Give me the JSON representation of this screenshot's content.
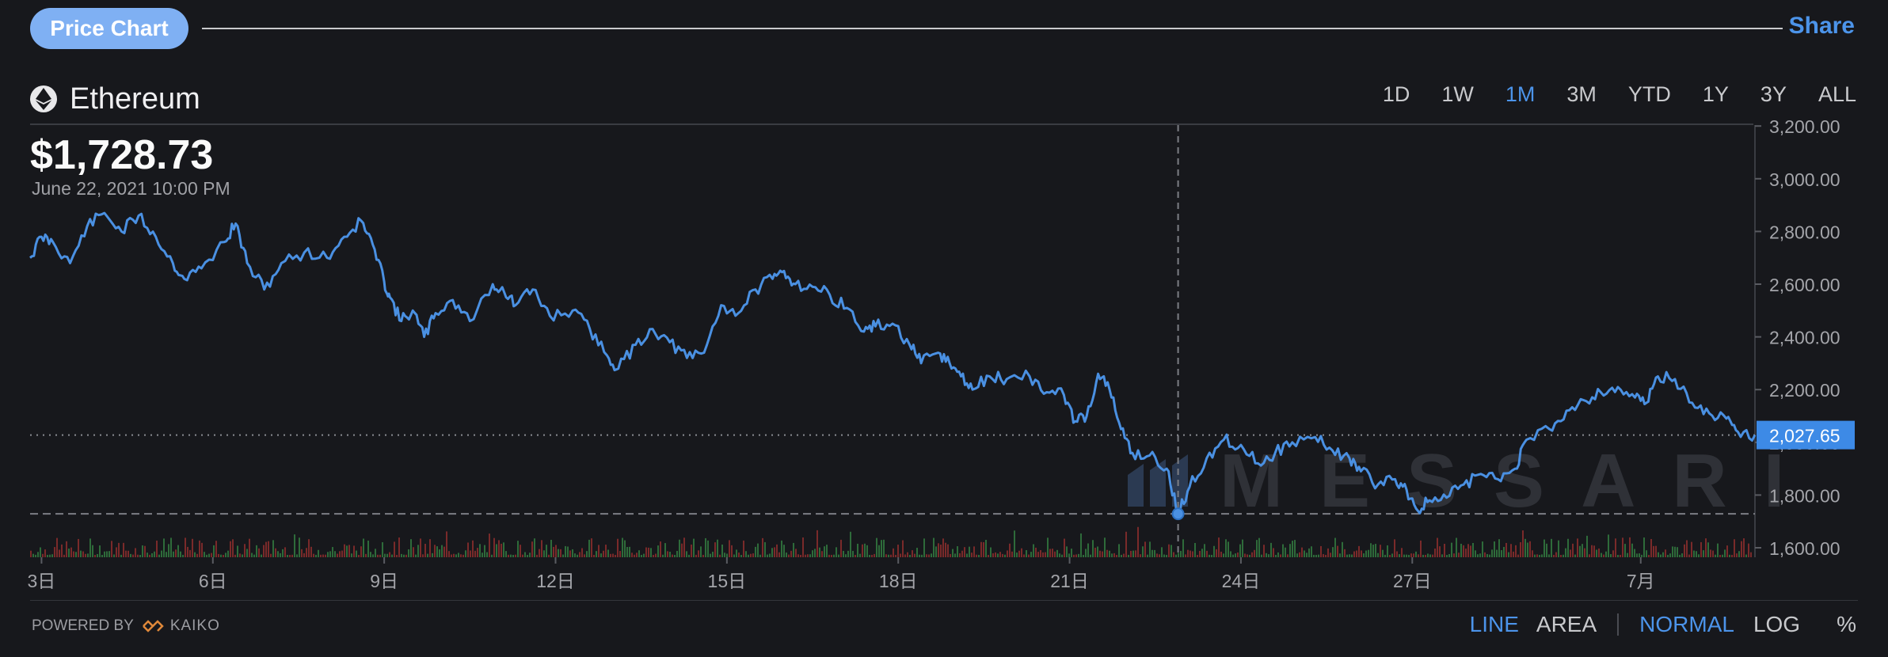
{
  "header": {
    "tab_label": "Price Chart",
    "share_label": "Share"
  },
  "asset": {
    "name": "Ethereum",
    "price": "$1,728.73",
    "date": "June 22, 2021 10:00 PM"
  },
  "ranges": [
    "1D",
    "1W",
    "1M",
    "3M",
    "YTD",
    "1Y",
    "3Y",
    "ALL"
  ],
  "active_range": "1M",
  "footer": {
    "powered_by": "POWERED BY",
    "provider": "KAIKO",
    "chart_modes": [
      "LINE",
      "AREA"
    ],
    "active_chart_mode": "LINE",
    "scale_modes": [
      "NORMAL",
      "LOG",
      "%"
    ],
    "active_scale_mode": "NORMAL"
  },
  "colors": {
    "accent": "#4c94ea",
    "line": "#4a90e2",
    "background": "#17181c",
    "volume_up": "#2e6b3a",
    "volume_down": "#7a2a2a"
  },
  "chart_data": {
    "type": "line",
    "y_ticks": [
      1600,
      1800,
      2000,
      2200,
      2400,
      2600,
      2800,
      3000,
      3200
    ],
    "y_tick_labels": [
      "1,600.00",
      "1,800.00",
      "2,000.00",
      "2,200.00",
      "2,400.00",
      "2,600.00",
      "2,800.00",
      "3,000.00",
      "3,200.00"
    ],
    "ylim": [
      1600,
      3200
    ],
    "x_ticks": [
      {
        "day": 3,
        "label": "3日"
      },
      {
        "day": 6,
        "label": "6日"
      },
      {
        "day": 9,
        "label": "9日"
      },
      {
        "day": 12,
        "label": "12日"
      },
      {
        "day": 15,
        "label": "15日"
      },
      {
        "day": 18,
        "label": "18日"
      },
      {
        "day": 21,
        "label": "21日"
      },
      {
        "day": 24,
        "label": "24日"
      },
      {
        "day": 27,
        "label": "27日"
      },
      {
        "day": 31,
        "label": "7月"
      }
    ],
    "xlim": [
      2.8,
      33.0
    ],
    "last_value": 2027.65,
    "last_value_label": "2,027.65",
    "crosshair": {
      "day": 22.9,
      "value": 1728.73
    },
    "watermark": "MESSARI",
    "series": [
      {
        "points": [
          [
            2.8,
            2700
          ],
          [
            3.0,
            2780
          ],
          [
            3.2,
            2760
          ],
          [
            3.5,
            2680
          ],
          [
            3.8,
            2820
          ],
          [
            4.1,
            2870
          ],
          [
            4.4,
            2800
          ],
          [
            4.7,
            2860
          ],
          [
            5.0,
            2780
          ],
          [
            5.3,
            2680
          ],
          [
            5.5,
            2620
          ],
          [
            5.8,
            2660
          ],
          [
            6.2,
            2760
          ],
          [
            6.4,
            2830
          ],
          [
            6.6,
            2680
          ],
          [
            6.9,
            2580
          ],
          [
            7.2,
            2680
          ],
          [
            7.6,
            2720
          ],
          [
            8.0,
            2700
          ],
          [
            8.3,
            2780
          ],
          [
            8.6,
            2840
          ],
          [
            8.8,
            2750
          ],
          [
            9.0,
            2610
          ],
          [
            9.1,
            2550
          ],
          [
            9.3,
            2460
          ],
          [
            9.5,
            2500
          ],
          [
            9.7,
            2400
          ],
          [
            9.9,
            2490
          ],
          [
            10.2,
            2540
          ],
          [
            10.5,
            2460
          ],
          [
            10.9,
            2600
          ],
          [
            11.1,
            2570
          ],
          [
            11.3,
            2520
          ],
          [
            11.6,
            2580
          ],
          [
            11.9,
            2480
          ],
          [
            12.3,
            2500
          ],
          [
            12.6,
            2430
          ],
          [
            12.9,
            2330
          ],
          [
            13.1,
            2280
          ],
          [
            13.4,
            2370
          ],
          [
            13.7,
            2430
          ],
          [
            14.0,
            2380
          ],
          [
            14.3,
            2320
          ],
          [
            14.6,
            2340
          ],
          [
            14.9,
            2520
          ],
          [
            15.2,
            2490
          ],
          [
            15.5,
            2580
          ],
          [
            15.8,
            2620
          ],
          [
            16.0,
            2650
          ],
          [
            16.2,
            2600
          ],
          [
            16.5,
            2590
          ],
          [
            16.8,
            2560
          ],
          [
            17.1,
            2510
          ],
          [
            17.4,
            2420
          ],
          [
            17.6,
            2440
          ],
          [
            17.9,
            2450
          ],
          [
            18.2,
            2370
          ],
          [
            18.4,
            2300
          ],
          [
            18.7,
            2340
          ],
          [
            18.9,
            2300
          ],
          [
            19.1,
            2250
          ],
          [
            19.3,
            2200
          ],
          [
            19.6,
            2250
          ],
          [
            19.9,
            2240
          ],
          [
            20.3,
            2250
          ],
          [
            20.6,
            2190
          ],
          [
            20.9,
            2180
          ],
          [
            21.1,
            2080
          ],
          [
            21.3,
            2100
          ],
          [
            21.5,
            2260
          ],
          [
            21.7,
            2200
          ],
          [
            21.9,
            2050
          ],
          [
            22.1,
            1960
          ],
          [
            22.4,
            1950
          ],
          [
            22.7,
            1900
          ],
          [
            22.9,
            1728
          ],
          [
            23.1,
            1830
          ],
          [
            23.4,
            1940
          ],
          [
            23.7,
            2010
          ],
          [
            24.0,
            1990
          ],
          [
            24.3,
            1920
          ],
          [
            24.6,
            1960
          ],
          [
            24.9,
            2000
          ],
          [
            25.3,
            2020
          ],
          [
            25.6,
            1970
          ],
          [
            25.9,
            1940
          ],
          [
            26.1,
            1890
          ],
          [
            26.4,
            1840
          ],
          [
            26.7,
            1860
          ],
          [
            26.9,
            1820
          ],
          [
            27.1,
            1740
          ],
          [
            27.3,
            1780
          ],
          [
            27.6,
            1790
          ],
          [
            27.9,
            1840
          ],
          [
            28.2,
            1880
          ],
          [
            28.5,
            1860
          ],
          [
            28.8,
            1900
          ],
          [
            29.0,
            2010
          ],
          [
            29.4,
            2050
          ],
          [
            29.7,
            2120
          ],
          [
            30.0,
            2160
          ],
          [
            30.3,
            2190
          ],
          [
            30.6,
            2210
          ],
          [
            30.9,
            2170
          ],
          [
            31.1,
            2150
          ],
          [
            31.3,
            2250
          ],
          [
            31.6,
            2240
          ],
          [
            31.9,
            2150
          ],
          [
            32.2,
            2110
          ],
          [
            32.5,
            2090
          ],
          [
            32.7,
            2040
          ],
          [
            33.0,
            2028
          ]
        ]
      }
    ]
  }
}
